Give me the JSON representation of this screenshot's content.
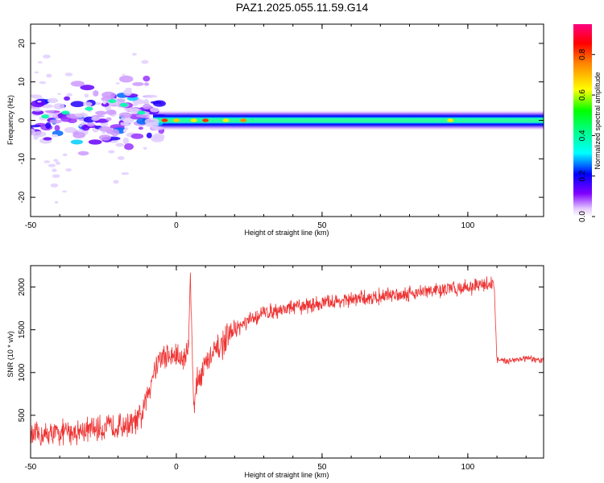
{
  "title": "PAZ1.2025.055.11.59.G14",
  "colors": {
    "snr_line": "#ee3333",
    "frame": "#000000"
  },
  "chart_data": [
    {
      "type": "heatmap",
      "xlabel": "Height of straight line (km)",
      "ylabel": "Frequency (Hz)",
      "xlim": [
        -50,
        126
      ],
      "ylim": [
        -25,
        25
      ],
      "xticks": [
        "-50",
        "0",
        "50",
        "100"
      ],
      "yticks": [
        "-20",
        "-10",
        "0",
        "10",
        "20"
      ],
      "colorbar": {
        "label": "Normalized spectral amplitude",
        "range": [
          0,
          0.95
        ],
        "ticks": [
          "0.0",
          "0.2",
          "0.4",
          "0.6",
          "0.8"
        ]
      },
      "grid": false
    },
    {
      "type": "line",
      "xlabel": "Height of straight line (km)",
      "ylabel": "SNR (10 * v/v)",
      "xlim": [
        -50,
        126
      ],
      "ylim": [
        0,
        2250
      ],
      "xticks": [
        "-50",
        "0",
        "50",
        "100"
      ],
      "yticks": [
        "500",
        "1000",
        "1500",
        "2000"
      ],
      "series": [
        {
          "x": [
            -50,
            -45,
            -40,
            -35,
            -30,
            -25,
            -20,
            -15,
            -12,
            -10,
            -8,
            -6,
            -4,
            -2,
            0,
            2,
            4,
            4.8,
            5.5,
            6,
            7,
            10,
            15,
            20,
            25,
            30,
            40,
            50,
            60,
            70,
            80,
            90,
            100,
            105,
            109,
            110,
            112,
            115,
            120,
            126
          ],
          "values": [
            250,
            270,
            290,
            310,
            330,
            350,
            380,
            400,
            480,
            720,
            1000,
            1150,
            1200,
            1180,
            1200,
            1150,
            1250,
            2200,
            1100,
            600,
            900,
            1100,
            1300,
            1500,
            1600,
            1700,
            1760,
            1810,
            1850,
            1890,
            1930,
            1960,
            2000,
            2020,
            2050,
            1150,
            1130,
            1150,
            1160,
            1140
          ]
        }
      ],
      "grid": false
    }
  ]
}
